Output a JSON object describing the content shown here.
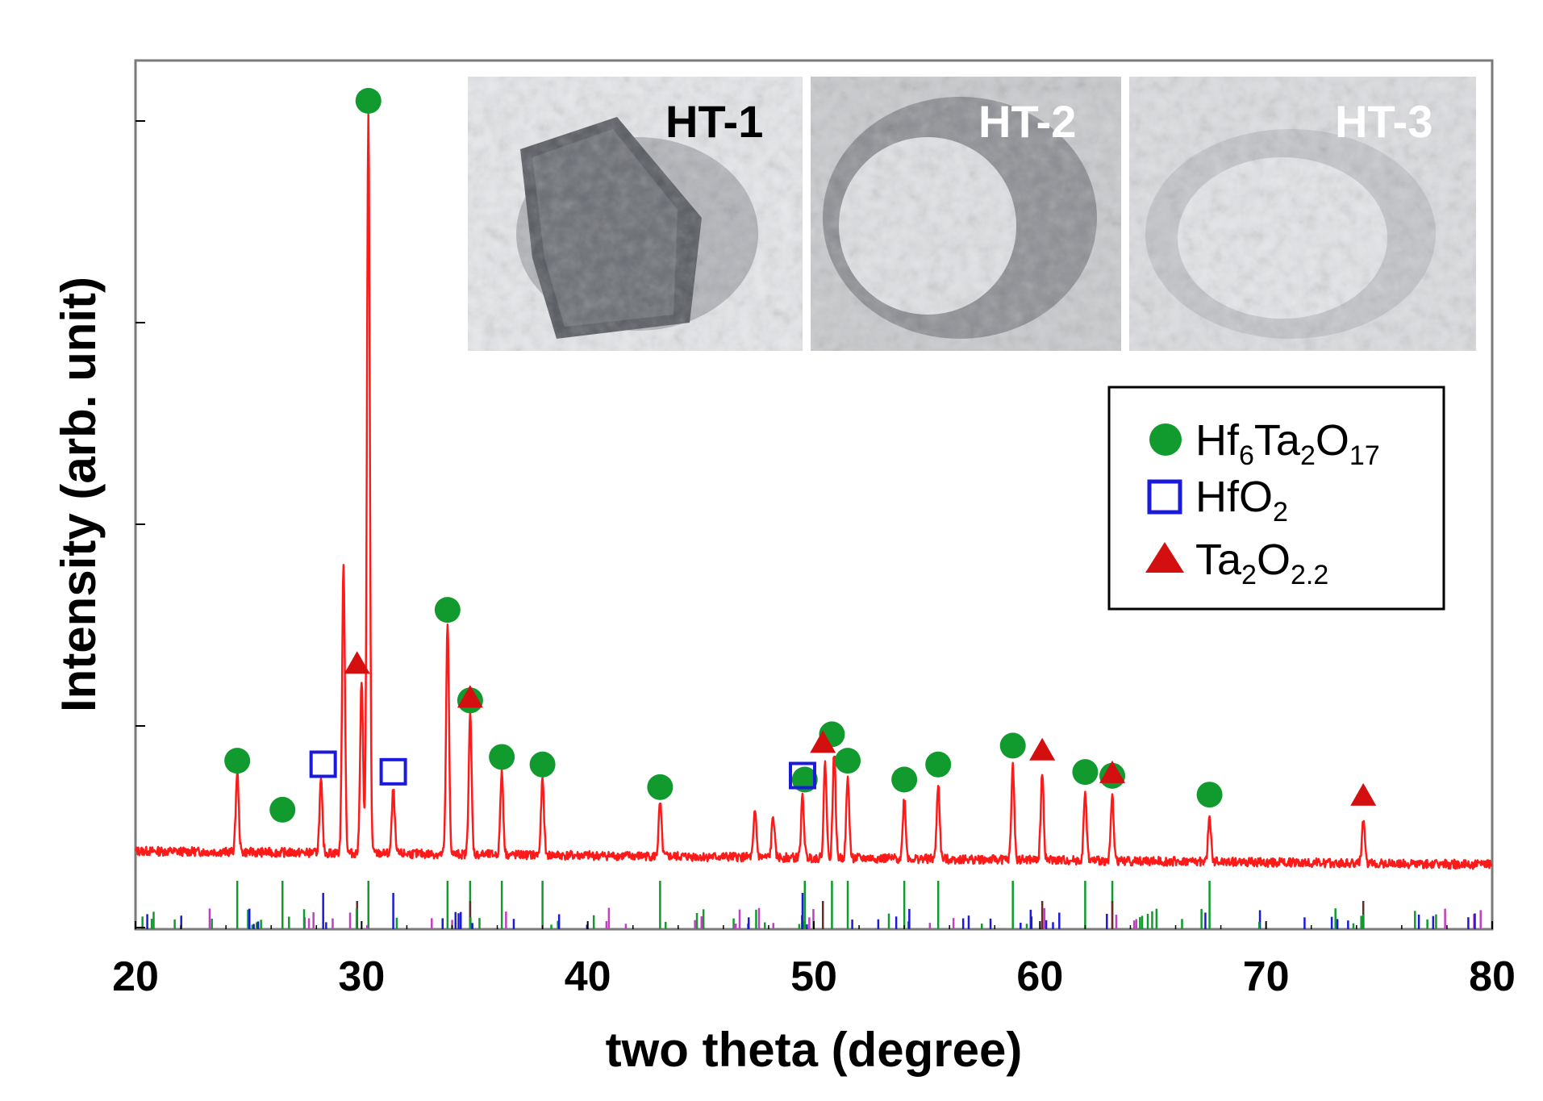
{
  "chart_data": {
    "type": "line",
    "xlabel": "two theta (degree)",
    "ylabel": "Intensity (arb. unit)",
    "xlim": [
      20,
      80
    ],
    "ylim": [
      0,
      100
    ],
    "x_ticks": [
      20,
      30,
      40,
      50,
      60,
      70,
      80
    ],
    "y_tick_labels_shown": false,
    "grid": false,
    "colors": {
      "pattern": "#ff1a1a",
      "hf6ta2o17": "#119a2e",
      "hfo2": "#1a1adc",
      "ta2o22": "#d40f0f",
      "reference_magenta": "#c040c0",
      "reference_dark": "#6b2a2a"
    },
    "series": [
      {
        "name": "",
        "color": "#ff1a1a",
        "peaks": [
          {
            "x": 24.5,
            "y": 12.5
          },
          {
            "x": 28.2,
            "y": 11.5
          },
          {
            "x": 29.2,
            "y": 40.0
          },
          {
            "x": 30.0,
            "y": 25.0
          },
          {
            "x": 30.3,
            "y": 100.0
          },
          {
            "x": 31.4,
            "y": 10.5
          },
          {
            "x": 33.8,
            "y": 32.5
          },
          {
            "x": 34.8,
            "y": 20.5
          },
          {
            "x": 36.2,
            "y": 13.0
          },
          {
            "x": 38.0,
            "y": 12.0
          },
          {
            "x": 43.2,
            "y": 9.0
          },
          {
            "x": 47.4,
            "y": 8.0
          },
          {
            "x": 48.2,
            "y": 7.5
          },
          {
            "x": 49.5,
            "y": 10.0
          },
          {
            "x": 50.5,
            "y": 14.5
          },
          {
            "x": 50.9,
            "y": 16.0
          },
          {
            "x": 51.5,
            "y": 12.5
          },
          {
            "x": 54.0,
            "y": 10.0
          },
          {
            "x": 55.5,
            "y": 12.0
          },
          {
            "x": 58.8,
            "y": 14.5
          },
          {
            "x": 60.1,
            "y": 13.5
          },
          {
            "x": 62.0,
            "y": 11.0
          },
          {
            "x": 63.2,
            "y": 10.5
          },
          {
            "x": 67.5,
            "y": 8.0
          },
          {
            "x": 74.3,
            "y": 7.5
          }
        ]
      }
    ],
    "markers": {
      "hf6ta2o17": [
        24.5,
        26.5,
        30.3,
        33.8,
        34.8,
        36.2,
        38.0,
        43.2,
        49.6,
        50.8,
        51.5,
        54.0,
        55.5,
        58.8,
        62.0,
        63.2,
        67.5
      ],
      "hfo2": [
        28.3,
        31.4,
        49.5
      ],
      "ta2o22": [
        29.8,
        34.8,
        50.4,
        60.1,
        63.2,
        74.3
      ]
    },
    "legend": {
      "position": "right, below inset photos",
      "entries": [
        {
          "symbol": "filled-circle",
          "color": "#119a2e",
          "base": [
            "Hf",
            "Ta",
            "O"
          ],
          "sub": [
            "6",
            "2",
            "17"
          ]
        },
        {
          "symbol": "open-square",
          "color": "#1a1adc",
          "base": [
            "HfO"
          ],
          "sub": [
            "2"
          ]
        },
        {
          "symbol": "filled-triangle",
          "color": "#d40f0f",
          "base": [
            "Ta",
            "O"
          ],
          "sub": [
            "2",
            "2.2"
          ]
        }
      ]
    },
    "inset_photos": [
      {
        "label": "HT-1",
        "label_color": "#000000",
        "description": "dark grey crystal"
      },
      {
        "label": "HT-2",
        "label_color": "#ffffff",
        "description": "partially whitened crystal"
      },
      {
        "label": "HT-3",
        "label_color": "#ffffff",
        "description": "white powder"
      }
    ]
  }
}
